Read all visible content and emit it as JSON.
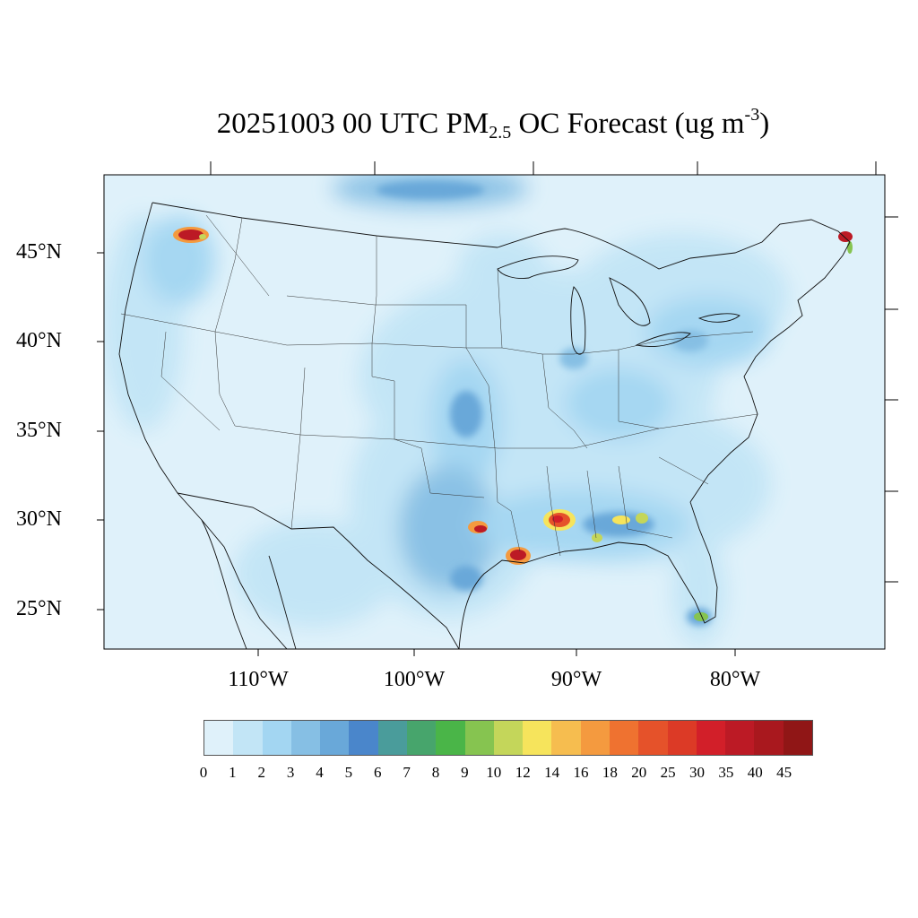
{
  "title": {
    "prefix": "20251003 00 UTC PM",
    "sub": "2.5",
    "middle": " OC Forecast (ug m",
    "sup": "-3",
    "suffix": ")"
  },
  "map": {
    "region": "Contiguous United States",
    "field": "PM2.5 OC Forecast",
    "units": "ug m-3",
    "lat_labels": [
      "45°N",
      "40°N",
      "35°N",
      "30°N",
      "25°N"
    ],
    "lon_labels": [
      "110°W",
      "100°W",
      "90°W",
      "80°W"
    ],
    "hotspots": [
      {
        "place": "Idaho panhandle / NE Washington",
        "level": 45
      },
      {
        "place": "New Brunswick / Maine coast",
        "level": 45
      },
      {
        "place": "Southeast Texas",
        "level": 40
      },
      {
        "place": "SW Louisiana coast",
        "level": 45
      },
      {
        "place": "Mississippi",
        "level": 30
      },
      {
        "place": "Alabama",
        "level": 14
      },
      {
        "place": "SW Florida",
        "level": 10
      }
    ]
  },
  "colorbar": {
    "labels": [
      "0",
      "1",
      "2",
      "3",
      "4",
      "5",
      "6",
      "7",
      "8",
      "9",
      "10",
      "12",
      "14",
      "16",
      "18",
      "20",
      "25",
      "30",
      "35",
      "40",
      "45"
    ],
    "colors": [
      "#dff1fa",
      "#c2e5f6",
      "#a3d6f2",
      "#86bfe4",
      "#69a8d9",
      "#4a86cb",
      "#4a9c9b",
      "#47a56c",
      "#4ab548",
      "#86c450",
      "#c4d65a",
      "#f6e45c",
      "#f6bd4f",
      "#f49a3f",
      "#ef7230",
      "#e5522a",
      "#dc3a26",
      "#d21f29",
      "#bc1a25",
      "#a9181e",
      "#901616"
    ]
  }
}
